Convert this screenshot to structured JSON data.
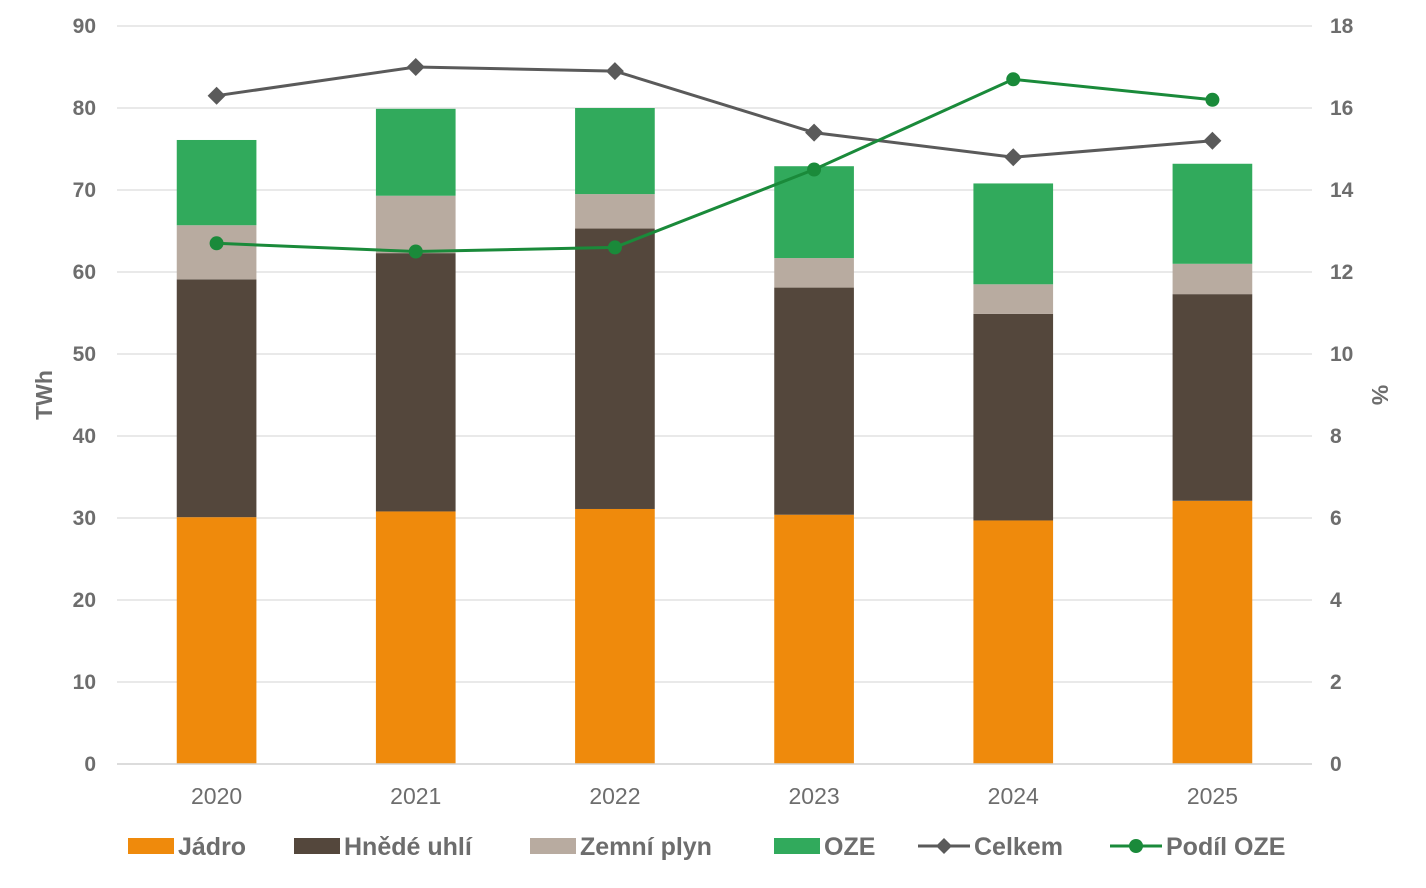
{
  "chart_data": {
    "type": "bar",
    "stacked": true,
    "categories": [
      "2020",
      "2021",
      "2022",
      "2023",
      "2024",
      "2025"
    ],
    "series": [
      {
        "name": "Jádro",
        "color": "#ef8a0c",
        "axis": "left",
        "values": [
          30.1,
          30.8,
          31.1,
          30.4,
          29.7,
          32.1
        ]
      },
      {
        "name": "Hnědé uhlí",
        "color": "#54473c",
        "axis": "left",
        "values": [
          29.0,
          31.5,
          34.2,
          27.7,
          25.2,
          25.2
        ]
      },
      {
        "name": "Zemní plyn",
        "color": "#b8aba0",
        "axis": "left",
        "values": [
          6.6,
          7.0,
          4.2,
          3.6,
          3.6,
          3.7
        ]
      },
      {
        "name": "OZE",
        "color": "#31aa5c",
        "axis": "left",
        "values": [
          10.4,
          10.6,
          10.5,
          11.2,
          12.3,
          12.2
        ]
      }
    ],
    "lines": [
      {
        "name": "Celkem",
        "color": "#5a5a5a",
        "marker": "diamond",
        "axis": "right",
        "values": [
          16.3,
          17.0,
          16.9,
          15.4,
          14.8,
          15.2
        ]
      },
      {
        "name": "Podíl OZE",
        "color": "#1a8a3a",
        "marker": "circle",
        "axis": "right",
        "values": [
          12.7,
          12.5,
          12.6,
          14.5,
          16.7,
          16.2
        ]
      }
    ],
    "ylabel": "TWh",
    "ylabel_right": "%",
    "ylim": [
      0,
      90
    ],
    "ylim_right": [
      0,
      18
    ],
    "yticks": [
      "0",
      "10",
      "20",
      "30",
      "40",
      "50",
      "60",
      "70",
      "80",
      "90"
    ],
    "yticks_right": [
      "0",
      "2",
      "4",
      "6",
      "8",
      "10",
      "12",
      "14",
      "16",
      "18"
    ],
    "grid": true,
    "legend_position": "bottom"
  }
}
